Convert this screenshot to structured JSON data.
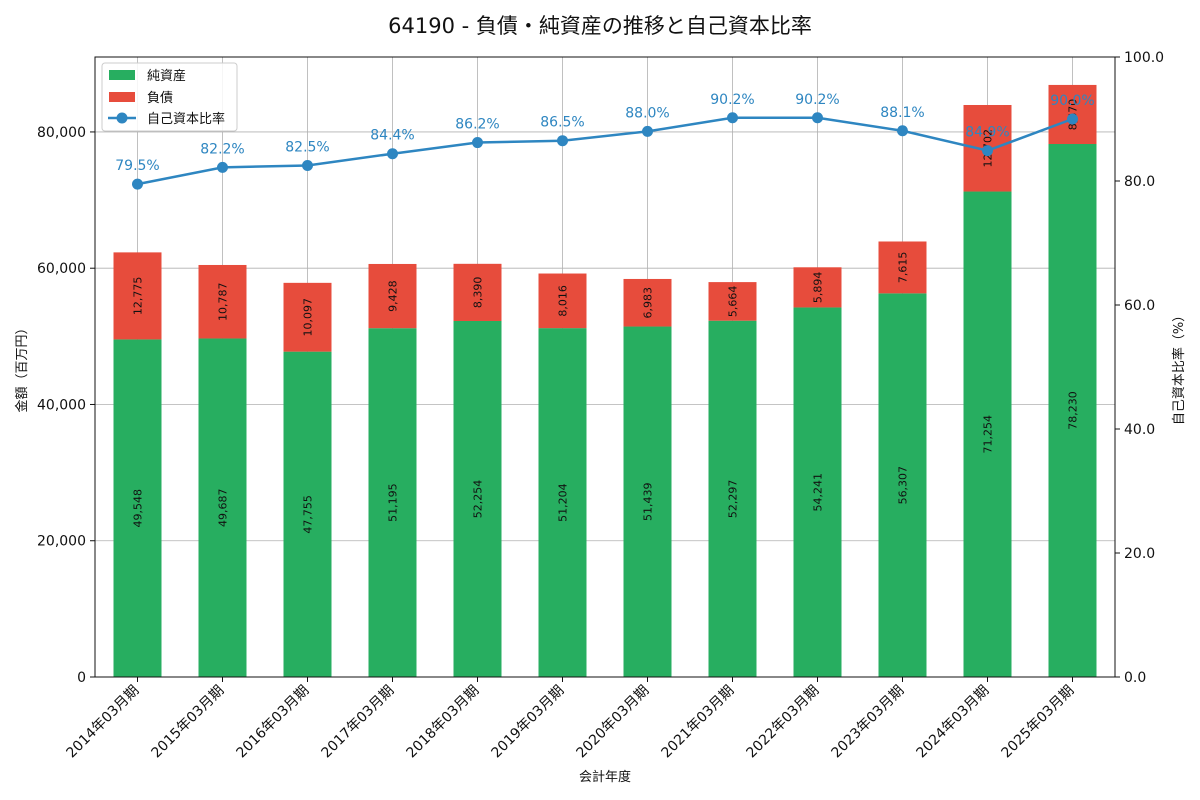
{
  "chart_data": {
    "type": "bar",
    "stacked": true,
    "title": "64190 - 負債・純資産の推移と自己資本比率",
    "xlabel": "会計年度",
    "ylabel": "金額（百万円）",
    "y2label": "自己資本比率（%）",
    "ylim": [
      0,
      91000
    ],
    "y2lim": [
      0,
      100
    ],
    "yticks": [
      0,
      20000,
      40000,
      60000,
      80000
    ],
    "ytick_labels": [
      "0",
      "20,000",
      "40,000",
      "60,000",
      "80,000"
    ],
    "y2ticks": [
      0,
      20,
      40,
      60,
      80,
      100
    ],
    "y2tick_labels": [
      "0.0",
      "20.0",
      "40.0",
      "60.0",
      "80.0",
      "100.0"
    ],
    "grid": true,
    "legend_position": "top-left",
    "categories": [
      "2014年03月期",
      "2015年03月期",
      "2016年03月期",
      "2017年03月期",
      "2018年03月期",
      "2019年03月期",
      "2020年03月期",
      "2021年03月期",
      "2022年03月期",
      "2023年03月期",
      "2024年03月期",
      "2025年03月期"
    ],
    "series": [
      {
        "name": "純資産",
        "kind": "bar",
        "color": "#27ae60",
        "values": [
          49548,
          49687,
          47755,
          51195,
          52254,
          51204,
          51439,
          52297,
          54241,
          56307,
          71254,
          78230
        ],
        "labels": [
          "49,548",
          "49,687",
          "47,755",
          "51,195",
          "52,254",
          "51,204",
          "51,439",
          "52,297",
          "54,241",
          "56,307",
          "71,254",
          "78,230"
        ]
      },
      {
        "name": "負債",
        "kind": "bar",
        "color": "#e74c3c",
        "values": [
          12775,
          10787,
          10097,
          9428,
          8390,
          8016,
          6983,
          5664,
          5894,
          7615,
          12702,
          8670
        ],
        "labels": [
          "12,775",
          "10,787",
          "10,097",
          "9,428",
          "8,390",
          "8,016",
          "6,983",
          "5,664",
          "5,894",
          "7,615",
          "12,702",
          "8,670"
        ]
      },
      {
        "name": "自己資本比率",
        "kind": "line",
        "axis": "right",
        "color": "#2e86c1",
        "values": [
          79.5,
          82.2,
          82.5,
          84.4,
          86.2,
          86.5,
          88.0,
          90.2,
          90.2,
          88.1,
          84.9,
          90.0
        ],
        "labels": [
          "79.5%",
          "82.2%",
          "82.5%",
          "84.4%",
          "86.2%",
          "86.5%",
          "88.0%",
          "90.2%",
          "90.2%",
          "88.1%",
          "84.9%",
          "90.0%"
        ]
      }
    ]
  }
}
